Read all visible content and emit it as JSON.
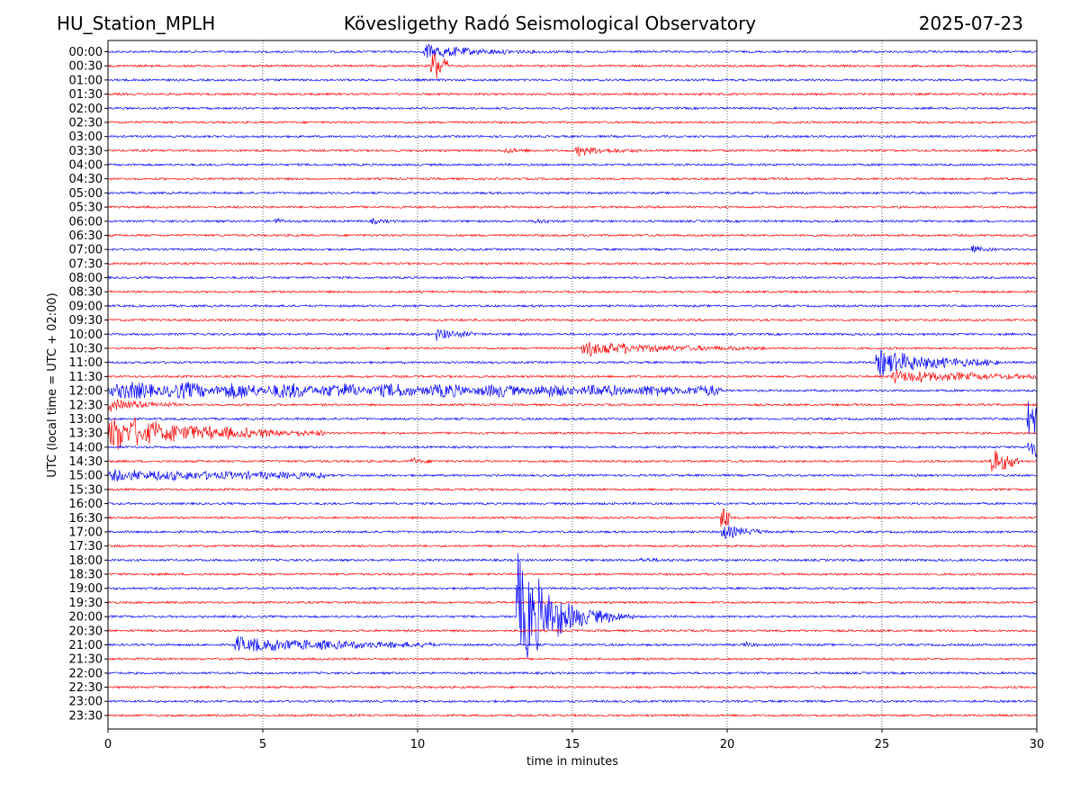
{
  "header": {
    "station": "HU_Station_MPLH",
    "title": "Kövesligethy Radó Seismological Observatory",
    "date": "2025-07-23"
  },
  "chart_data": {
    "type": "line",
    "title": "Kövesligethy Radó Seismological Observatory",
    "xlabel": "time in minutes",
    "ylabel": "UTC (local time = UTC + 02:00)",
    "xlim": [
      0,
      30
    ],
    "x_ticks": [
      0,
      5,
      10,
      15,
      20,
      25,
      30
    ],
    "vertical_gridlines_at": [
      5,
      10,
      15,
      20,
      25
    ],
    "grid": "vertical dotted",
    "colors": {
      "even_rows": "#0000ff",
      "odd_rows": "#ff0000"
    },
    "rows": [
      "00:00",
      "00:30",
      "01:00",
      "01:30",
      "02:00",
      "02:30",
      "03:00",
      "03:30",
      "04:00",
      "04:30",
      "05:00",
      "05:30",
      "06:00",
      "06:30",
      "07:00",
      "07:30",
      "08:00",
      "08:30",
      "09:00",
      "09:30",
      "10:00",
      "10:30",
      "11:00",
      "11:30",
      "12:00",
      "12:30",
      "13:00",
      "13:30",
      "14:00",
      "14:30",
      "15:00",
      "15:30",
      "16:00",
      "16:30",
      "17:00",
      "17:30",
      "18:00",
      "18:30",
      "19:00",
      "19:30",
      "20:00",
      "20:30",
      "21:00",
      "21:30",
      "22:00",
      "22:30",
      "23:00",
      "23:30"
    ],
    "noise_amplitude": 1.2,
    "events": [
      {
        "row": "00:00",
        "start": 10.2,
        "duration": 5.0,
        "amplitude": 10,
        "decay": 0.9
      },
      {
        "row": "00:30",
        "start": 10.4,
        "duration": 0.6,
        "amplitude": 30,
        "decay": 0.4
      },
      {
        "row": "03:30",
        "start": 12.8,
        "duration": 1.2,
        "amplitude": 3,
        "decay": 0.6
      },
      {
        "row": "03:30",
        "start": 15.1,
        "duration": 2.0,
        "amplitude": 6,
        "decay": 0.5
      },
      {
        "row": "06:00",
        "start": 5.4,
        "duration": 0.5,
        "amplitude": 3,
        "decay": 0.5
      },
      {
        "row": "06:00",
        "start": 8.5,
        "duration": 0.8,
        "amplitude": 3,
        "decay": 0.6
      },
      {
        "row": "06:00",
        "start": 13.8,
        "duration": 0.8,
        "amplitude": 3,
        "decay": 0.6
      },
      {
        "row": "07:00",
        "start": 27.9,
        "duration": 0.8,
        "amplitude": 4,
        "decay": 0.5
      },
      {
        "row": "10:00",
        "start": 10.6,
        "duration": 1.5,
        "amplitude": 7,
        "decay": 0.5
      },
      {
        "row": "10:30",
        "start": 15.3,
        "duration": 6.0,
        "amplitude": 9,
        "decay": 0.6
      },
      {
        "row": "11:00",
        "start": 24.8,
        "duration": 4.0,
        "amplitude": 16,
        "decay": 0.5
      },
      {
        "row": "11:30",
        "start": 25.3,
        "duration": 4.7,
        "amplitude": 8,
        "decay": 0.4
      },
      {
        "row": "12:00",
        "start": 0.0,
        "duration": 19.8,
        "amplitude": 9,
        "decay": 0.15
      },
      {
        "row": "12:30",
        "start": 0.0,
        "duration": 2.2,
        "amplitude": 7,
        "decay": 0.4
      },
      {
        "row": "13:00",
        "start": 29.7,
        "duration": 0.3,
        "amplitude": 22,
        "decay": 0.1
      },
      {
        "row": "13:30",
        "start": 0.0,
        "duration": 7.0,
        "amplitude": 22,
        "decay": 0.6
      },
      {
        "row": "14:00",
        "start": 29.7,
        "duration": 0.3,
        "amplitude": 16,
        "decay": 0.1
      },
      {
        "row": "14:30",
        "start": 28.5,
        "duration": 0.9,
        "amplitude": 22,
        "decay": 0.4
      },
      {
        "row": "14:30",
        "start": 9.8,
        "duration": 0.8,
        "amplitude": 4,
        "decay": 0.5
      },
      {
        "row": "15:00",
        "start": 0.0,
        "duration": 7.0,
        "amplitude": 6,
        "decay": 0.2
      },
      {
        "row": "16:30",
        "start": 19.8,
        "duration": 0.3,
        "amplitude": 35,
        "decay": 0.5
      },
      {
        "row": "17:00",
        "start": 19.8,
        "duration": 1.5,
        "amplitude": 10,
        "decay": 0.5
      },
      {
        "row": "18:00",
        "start": 17.2,
        "duration": 1.5,
        "amplitude": 2,
        "decay": 0.6
      },
      {
        "row": "20:00",
        "start": 13.2,
        "duration": 3.8,
        "amplitude": 80,
        "decay": 0.85
      },
      {
        "row": "21:00",
        "start": 4.1,
        "duration": 6.5,
        "amplitude": 9,
        "decay": 0.4
      },
      {
        "row": "21:00",
        "start": 20.5,
        "duration": 0.5,
        "amplitude": 4,
        "decay": 0.5
      }
    ]
  }
}
